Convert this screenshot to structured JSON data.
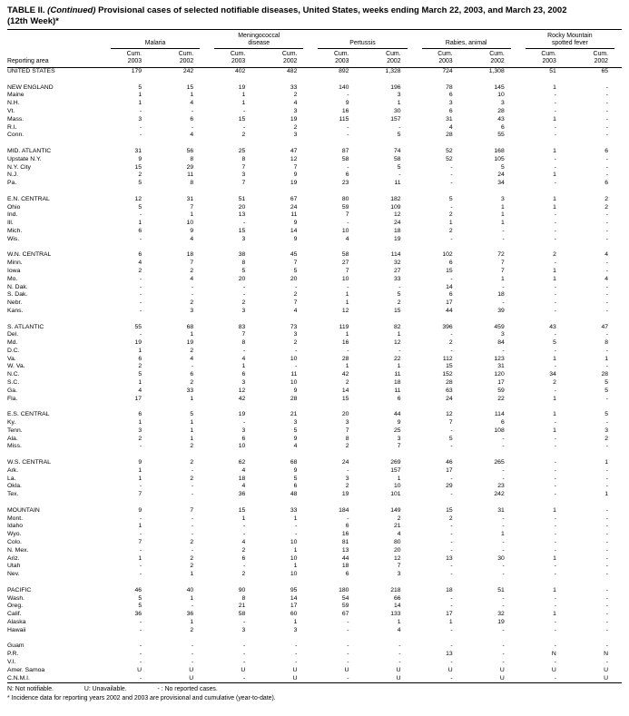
{
  "colors": {
    "ink": "#000000",
    "paper": "#ffffff"
  },
  "title": {
    "label": "TABLE II.",
    "continued": "(Continued)",
    "rest": "Provisional cases of selected notifiable diseases, United States, weeks ending March 22, 2003, and March 23, 2002",
    "line2": "(12th Week)*"
  },
  "table": {
    "header": {
      "reporting_area": "Reporting area",
      "groups": [
        {
          "line1": "",
          "line2": "Malaria"
        },
        {
          "line1": "Meningococcal",
          "line2": "disease"
        },
        {
          "line1": "",
          "line2": "Pertussis"
        },
        {
          "line1": "",
          "line2": "Rabies, animal"
        },
        {
          "line1": "Rocky Mountain",
          "line2": "spotted fever"
        }
      ],
      "subcols": [
        {
          "l1": "Cum.",
          "l2": "2003"
        },
        {
          "l1": "Cum.",
          "l2": "2002"
        },
        {
          "l1": "Cum.",
          "l2": "2003"
        },
        {
          "l1": "Cum.",
          "l2": "2002"
        },
        {
          "l1": "Cum.",
          "l2": "2003"
        },
        {
          "l1": "Cum.",
          "l2": "2002"
        },
        {
          "l1": "Cum.",
          "l2": "2003"
        },
        {
          "l1": "Cum.",
          "l2": "2002"
        },
        {
          "l1": "Cum.",
          "l2": "2003"
        },
        {
          "l1": "Cum.",
          "l2": "2002"
        }
      ]
    },
    "sections": [
      [
        [
          "UNITED STATES",
          "179",
          "242",
          "402",
          "482",
          "892",
          "1,328",
          "724",
          "1,308",
          "51",
          "65"
        ]
      ],
      [
        [
          "NEW ENGLAND",
          "5",
          "15",
          "19",
          "33",
          "140",
          "196",
          "78",
          "145",
          "1",
          "-"
        ],
        [
          "Maine",
          "1",
          "1",
          "1",
          "2",
          "-",
          "3",
          "6",
          "10",
          "-",
          "-"
        ],
        [
          "N.H.",
          "1",
          "4",
          "1",
          "4",
          "9",
          "1",
          "3",
          "3",
          "-",
          "-"
        ],
        [
          "Vt.",
          "-",
          "-",
          "-",
          "3",
          "16",
          "30",
          "6",
          "28",
          "-",
          "-"
        ],
        [
          "Mass.",
          "3",
          "6",
          "15",
          "19",
          "115",
          "157",
          "31",
          "43",
          "1",
          "-"
        ],
        [
          "R.I.",
          "-",
          "-",
          "-",
          "2",
          "-",
          "-",
          "4",
          "6",
          "-",
          "-"
        ],
        [
          "Conn.",
          "-",
          "4",
          "2",
          "3",
          "-",
          "5",
          "28",
          "55",
          "-",
          "-"
        ]
      ],
      [
        [
          "MID. ATLANTIC",
          "31",
          "56",
          "25",
          "47",
          "87",
          "74",
          "52",
          "168",
          "1",
          "6"
        ],
        [
          "Upstate N.Y.",
          "9",
          "8",
          "8",
          "12",
          "58",
          "58",
          "52",
          "105",
          "-",
          "-"
        ],
        [
          "N.Y. City",
          "15",
          "29",
          "7",
          "7",
          "-",
          "5",
          "-",
          "5",
          "-",
          "-"
        ],
        [
          "N.J.",
          "2",
          "11",
          "3",
          "9",
          "6",
          "-",
          "-",
          "24",
          "1",
          "-"
        ],
        [
          "Pa.",
          "5",
          "8",
          "7",
          "19",
          "23",
          "11",
          "-",
          "34",
          "-",
          "6"
        ]
      ],
      [
        [
          "E.N. CENTRAL",
          "12",
          "31",
          "51",
          "67",
          "80",
          "182",
          "5",
          "3",
          "1",
          "2"
        ],
        [
          "Ohio",
          "5",
          "7",
          "20",
          "24",
          "59",
          "109",
          "-",
          "1",
          "1",
          "2"
        ],
        [
          "Ind.",
          "-",
          "1",
          "13",
          "11",
          "7",
          "12",
          "2",
          "1",
          "-",
          "-"
        ],
        [
          "Ill.",
          "1",
          "10",
          "-",
          "9",
          "-",
          "24",
          "1",
          "1",
          "-",
          "-"
        ],
        [
          "Mich.",
          "6",
          "9",
          "15",
          "14",
          "10",
          "18",
          "2",
          "-",
          "-",
          "-"
        ],
        [
          "Wis.",
          "-",
          "4",
          "3",
          "9",
          "4",
          "19",
          "-",
          "-",
          "-",
          "-"
        ]
      ],
      [
        [
          "W.N. CENTRAL",
          "6",
          "18",
          "38",
          "45",
          "58",
          "114",
          "102",
          "72",
          "2",
          "4"
        ],
        [
          "Minn.",
          "4",
          "7",
          "8",
          "7",
          "27",
          "32",
          "6",
          "7",
          "-",
          "-"
        ],
        [
          "Iowa",
          "2",
          "2",
          "5",
          "5",
          "7",
          "27",
          "15",
          "7",
          "1",
          "-"
        ],
        [
          "Mo.",
          "-",
          "4",
          "20",
          "20",
          "10",
          "33",
          "-",
          "1",
          "1",
          "4"
        ],
        [
          "N. Dak.",
          "-",
          "-",
          "-",
          "-",
          "-",
          "-",
          "14",
          "-",
          "-",
          "-"
        ],
        [
          "S. Dak.",
          "-",
          "-",
          "-",
          "2",
          "1",
          "5",
          "6",
          "18",
          "-",
          "-"
        ],
        [
          "Nebr.",
          "-",
          "2",
          "2",
          "7",
          "1",
          "2",
          "17",
          "-",
          "-",
          "-"
        ],
        [
          "Kans.",
          "-",
          "3",
          "3",
          "4",
          "12",
          "15",
          "44",
          "39",
          "-",
          "-"
        ]
      ],
      [
        [
          "S. ATLANTIC",
          "55",
          "68",
          "83",
          "73",
          "119",
          "82",
          "396",
          "459",
          "43",
          "47"
        ],
        [
          "Del.",
          "-",
          "1",
          "7",
          "3",
          "1",
          "1",
          "-",
          "3",
          "-",
          "-"
        ],
        [
          "Md.",
          "19",
          "19",
          "8",
          "2",
          "16",
          "12",
          "2",
          "84",
          "5",
          "8"
        ],
        [
          "D.C.",
          "1",
          "2",
          "-",
          "-",
          "-",
          "-",
          "-",
          "-",
          "-",
          "-"
        ],
        [
          "Va.",
          "6",
          "4",
          "4",
          "10",
          "28",
          "22",
          "112",
          "123",
          "1",
          "1"
        ],
        [
          "W. Va.",
          "2",
          "-",
          "1",
          "-",
          "1",
          "1",
          "15",
          "31",
          "-",
          "-"
        ],
        [
          "N.C.",
          "5",
          "6",
          "6",
          "11",
          "42",
          "11",
          "152",
          "120",
          "34",
          "28"
        ],
        [
          "S.C.",
          "1",
          "2",
          "3",
          "10",
          "2",
          "18",
          "28",
          "17",
          "2",
          "5"
        ],
        [
          "Ga.",
          "4",
          "33",
          "12",
          "9",
          "14",
          "11",
          "63",
          "59",
          "-",
          "5"
        ],
        [
          "Fla.",
          "17",
          "1",
          "42",
          "28",
          "15",
          "6",
          "24",
          "22",
          "1",
          "-"
        ]
      ],
      [
        [
          "E.S. CENTRAL",
          "6",
          "5",
          "19",
          "21",
          "20",
          "44",
          "12",
          "114",
          "1",
          "5"
        ],
        [
          "Ky.",
          "1",
          "1",
          "-",
          "3",
          "3",
          "9",
          "7",
          "6",
          "-",
          "-"
        ],
        [
          "Tenn.",
          "3",
          "1",
          "3",
          "5",
          "7",
          "25",
          "-",
          "108",
          "1",
          "3"
        ],
        [
          "Ala.",
          "2",
          "1",
          "6",
          "9",
          "8",
          "3",
          "5",
          "-",
          "-",
          "2"
        ],
        [
          "Miss.",
          "-",
          "2",
          "10",
          "4",
          "2",
          "7",
          "-",
          "-",
          "-",
          "-"
        ]
      ],
      [
        [
          "W.S. CENTRAL",
          "9",
          "2",
          "62",
          "68",
          "24",
          "269",
          "46",
          "265",
          "-",
          "1"
        ],
        [
          "Ark.",
          "1",
          "-",
          "4",
          "9",
          "-",
          "157",
          "17",
          "-",
          "-",
          "-"
        ],
        [
          "La.",
          "1",
          "2",
          "18",
          "5",
          "3",
          "1",
          "-",
          "-",
          "-",
          "-"
        ],
        [
          "Okla.",
          "-",
          "-",
          "4",
          "6",
          "2",
          "10",
          "29",
          "23",
          "-",
          "-"
        ],
        [
          "Tex.",
          "7",
          "-",
          "36",
          "48",
          "19",
          "101",
          "-",
          "242",
          "-",
          "1"
        ]
      ],
      [
        [
          "MOUNTAIN",
          "9",
          "7",
          "15",
          "33",
          "184",
          "149",
          "15",
          "31",
          "1",
          "-"
        ],
        [
          "Mont.",
          "-",
          "-",
          "1",
          "1",
          "-",
          "2",
          "2",
          "-",
          "-",
          "-"
        ],
        [
          "Idaho",
          "1",
          "-",
          "-",
          "-",
          "6",
          "21",
          "-",
          "-",
          "-",
          "-"
        ],
        [
          "Wyo.",
          "-",
          "-",
          "-",
          "-",
          "16",
          "4",
          "-",
          "1",
          "-",
          "-"
        ],
        [
          "Colo.",
          "7",
          "2",
          "4",
          "10",
          "81",
          "80",
          "-",
          "-",
          "-",
          "-"
        ],
        [
          "N. Mex.",
          "-",
          "-",
          "2",
          "1",
          "13",
          "20",
          "-",
          "-",
          "-",
          "-"
        ],
        [
          "Ariz.",
          "1",
          "2",
          "6",
          "10",
          "44",
          "12",
          "13",
          "30",
          "1",
          "-"
        ],
        [
          "Utah",
          "-",
          "2",
          "-",
          "1",
          "18",
          "7",
          "-",
          "-",
          "-",
          "-"
        ],
        [
          "Nev.",
          "-",
          "1",
          "2",
          "10",
          "6",
          "3",
          "-",
          "-",
          "-",
          "-"
        ]
      ],
      [
        [
          "PACIFIC",
          "46",
          "40",
          "90",
          "95",
          "180",
          "218",
          "18",
          "51",
          "1",
          "-"
        ],
        [
          "Wash.",
          "5",
          "1",
          "8",
          "14",
          "54",
          "66",
          "-",
          "-",
          "-",
          "-"
        ],
        [
          "Oreg.",
          "5",
          "-",
          "21",
          "17",
          "59",
          "14",
          "-",
          "-",
          "-",
          "-"
        ],
        [
          "Calif.",
          "36",
          "36",
          "58",
          "60",
          "67",
          "133",
          "17",
          "32",
          "1",
          "-"
        ],
        [
          "Alaska",
          "-",
          "1",
          "-",
          "1",
          "-",
          "1",
          "1",
          "19",
          "-",
          "-"
        ],
        [
          "Hawaii",
          "-",
          "2",
          "3",
          "3",
          "-",
          "4",
          "-",
          "-",
          "-",
          "-"
        ]
      ],
      [
        [
          "Guam",
          "-",
          "-",
          "-",
          "-",
          "-",
          "-",
          "-",
          "-",
          "-",
          "-"
        ],
        [
          "P.R.",
          "-",
          "-",
          "-",
          "-",
          "-",
          "-",
          "13",
          "-",
          "N",
          "N"
        ],
        [
          "V.I.",
          "-",
          "-",
          "-",
          "-",
          "-",
          "-",
          "-",
          "-",
          "-",
          "-"
        ],
        [
          "Amer. Samoa",
          "U",
          "U",
          "U",
          "U",
          "U",
          "U",
          "U",
          "U",
          "U",
          "U"
        ],
        [
          "C.N.M.I.",
          "-",
          "U",
          "-",
          "U",
          "-",
          "U",
          "-",
          "U",
          "-",
          "U"
        ]
      ]
    ]
  },
  "footnotes": {
    "legend": [
      "N: Not notifiable.",
      "U: Unavailable.",
      "- : No reported cases."
    ],
    "note": "* Incidence data for reporting years 2002 and 2003 are provisional and cumulative (year-to-date)."
  }
}
